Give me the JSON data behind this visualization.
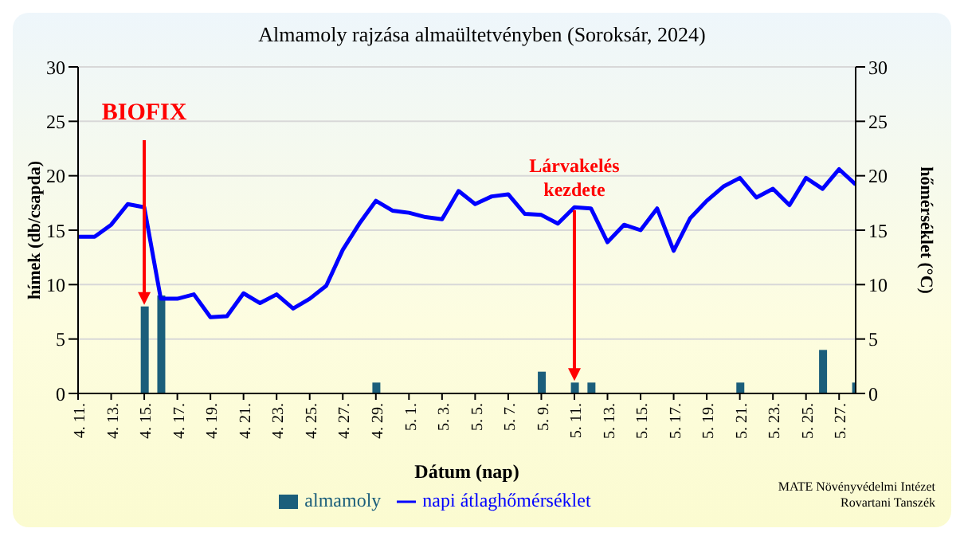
{
  "chart_data": {
    "type": "bar",
    "title": "Almamoly rajzása almaültetvényben (Soroksár, 2024)",
    "xlabel": "Dátum (nap)",
    "ylabel": "hímek (db/csapda)",
    "y2label": "hőmérséklet (°C)",
    "categories": [
      "4. 11.",
      null,
      "4. 13.",
      null,
      "4. 15.",
      null,
      "4. 17.",
      null,
      "4. 19.",
      null,
      "4. 21.",
      null,
      "4. 23.",
      null,
      "4. 25.",
      null,
      "4. 27.",
      null,
      "4. 29.",
      null,
      "5. 1.",
      null,
      "5. 3.",
      null,
      "5. 5.",
      null,
      "5. 7.",
      null,
      "5. 9.",
      null,
      "5. 11.",
      null,
      "5. 13.",
      null,
      "5. 15.",
      null,
      "5. 17.",
      null,
      "5. 19.",
      null,
      "5. 21.",
      null,
      "5. 23.",
      null,
      "5. 25.",
      null,
      "5. 27.",
      null
    ],
    "series": [
      {
        "name": "almamoly",
        "color": "#1b5e7b",
        "values": [
          0,
          0,
          0,
          0,
          8,
          9,
          0,
          0,
          0,
          0,
          0,
          0,
          0,
          0,
          0,
          0,
          0,
          0,
          1,
          0,
          0,
          0,
          0,
          0,
          0,
          0,
          0,
          0,
          2,
          0,
          1,
          1,
          0,
          0,
          0,
          0,
          0,
          0,
          0,
          0,
          1,
          0,
          0,
          0,
          0,
          4,
          0,
          1
        ]
      },
      {
        "name": "napi átlaghőmérséklet",
        "type": "line",
        "axis": "y2",
        "color": "#0000ff",
        "values": [
          14.4,
          14.4,
          15.5,
          17.4,
          17.1,
          8.7,
          8.7,
          9.1,
          7.0,
          7.1,
          9.2,
          8.3,
          9.1,
          7.8,
          8.7,
          9.9,
          13.2,
          15.6,
          17.7,
          16.8,
          16.6,
          16.2,
          16.0,
          18.6,
          17.4,
          18.1,
          18.3,
          16.5,
          16.4,
          15.6,
          17.1,
          17.0,
          13.9,
          15.5,
          15.0,
          17.0,
          13.1,
          16.1,
          17.7,
          19.0,
          19.8,
          18.0,
          18.8,
          17.3,
          19.8,
          18.8,
          20.6,
          19.2
        ]
      }
    ],
    "ylim": [
      0,
      30
    ],
    "yticks": [
      0,
      5,
      10,
      15,
      20,
      25,
      30
    ],
    "y2lim": [
      0,
      30
    ],
    "y2ticks": [
      0,
      5,
      10,
      15,
      20,
      25,
      30
    ],
    "grid": "y",
    "legend": "bottom",
    "annotations": [
      {
        "text": "BIOFIX",
        "x": "4. 15.",
        "y": 8
      },
      {
        "text": "Lárvakelés kezdete",
        "x": "5. 11.",
        "y": 1
      },
      "MATE Növényvédelmi Intézet",
      "Rovartani Tanszék"
    ]
  }
}
